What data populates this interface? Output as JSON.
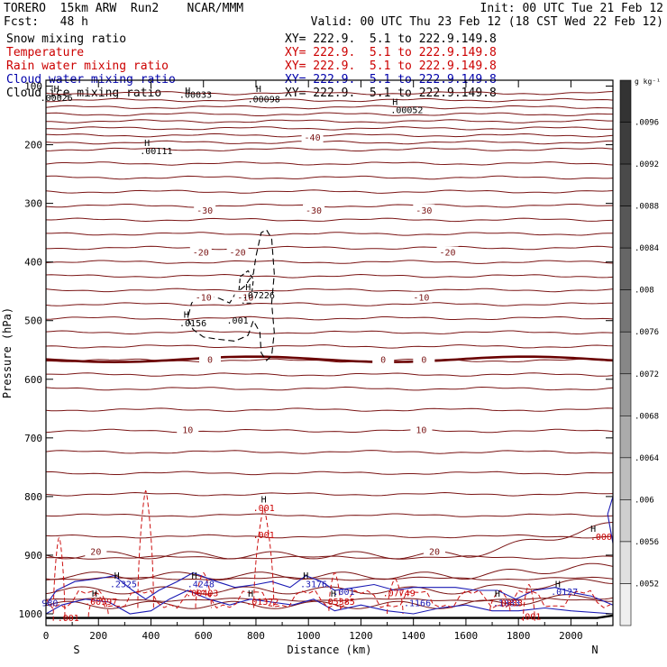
{
  "header": {
    "model": "TORERO  15km ARW  Run2    NCAR/MMM",
    "init": "Init: 00 UTC Tue 21 Feb 12",
    "fcst": "Fcst:   48 h",
    "valid": "Valid: 00 UTC Thu 23 Feb 12 (18 CST Wed 22 Feb 12)"
  },
  "fields": [
    {
      "label": "Snow mixing ratio",
      "xy": "XY= 222.9.  5.1 to 222.9.149.8",
      "color": "#000000"
    },
    {
      "label": "Temperature",
      "xy": "XY= 222.9.  5.1 to 222.9.149.8",
      "color": "#cc0000"
    },
    {
      "label": "Rain water mixing ratio",
      "xy": "XY= 222.9.  5.1 to 222.9.149.8",
      "color": "#cc0000"
    },
    {
      "label": "Cloud water mixing ratio",
      "xy": "XY= 222.9.  5.1 to 222.9.149.8",
      "color": "#0000aa"
    },
    {
      "label": "Cloud ice mixing ratio",
      "xy": "XY= 222.9.  5.1 to 222.9.149.8",
      "color": "#000000"
    }
  ],
  "chart_data": {
    "type": "contour",
    "xlabel": "Distance (km)",
    "ylabel": "Pressure (hPa)",
    "xlim": [
      0,
      2160
    ],
    "ylim": [
      1020,
      100
    ],
    "xticks": [
      0,
      200,
      400,
      600,
      800,
      1000,
      1200,
      1400,
      1600,
      1800,
      2000
    ],
    "yticks": [
      100,
      200,
      300,
      400,
      500,
      600,
      700,
      800,
      900,
      1000
    ],
    "x_end_labels": {
      "left": "S",
      "right": "N"
    },
    "colorbar": {
      "unit": "g kg⁻¹",
      "ticks": [
        ".0096",
        ".0092",
        ".0088",
        ".0084",
        ".008",
        ".0076",
        ".0072",
        ".0068",
        ".0064",
        ".006",
        ".0056",
        ".0052"
      ],
      "colors": [
        "#333333",
        "#3d3d3d",
        "#4a4a4a",
        "#575757",
        "#666666",
        "#767676",
        "#878787",
        "#999999",
        "#ababab",
        "#bdbdbd",
        "#cfcfcf",
        "#e0e0e0",
        "#efefef"
      ]
    },
    "temperature_contours": [
      {
        "label": "-40",
        "p": 187,
        "x_labels": [
          1015
        ]
      },
      {
        "label": "-30",
        "p": 311,
        "x_labels": [
          605,
          1020,
          1440
        ]
      },
      {
        "label": "-20",
        "p": 383,
        "x_labels": [
          590,
          730,
          1530
        ]
      },
      {
        "label": "-10",
        "p": 460,
        "x_labels": [
          600,
          760,
          1430
        ]
      },
      {
        "label": "0",
        "p": 566,
        "x_labels": [
          625,
          1285,
          1440
        ]
      },
      {
        "label": "10",
        "p": 686,
        "x_labels": [
          540,
          1430
        ]
      },
      {
        "label": "20",
        "p": 893,
        "x_labels": [
          190,
          1480
        ]
      }
    ],
    "freezing_level_hPa": 566,
    "extrema_labels": [
      {
        "text": ".00026",
        "x": 40,
        "p": 125,
        "field": "snow"
      },
      {
        "text": ".00033",
        "x": 570,
        "p": 120,
        "field": "snow"
      },
      {
        "text": ".00098",
        "x": 830,
        "p": 128,
        "field": "snow"
      },
      {
        "text": ".00052",
        "x": 1375,
        "p": 146,
        "field": "snow"
      },
      {
        "text": ".00111",
        "x": 420,
        "p": 216,
        "field": "snow"
      },
      {
        "text": ".07226",
        "x": 810,
        "p": 462,
        "field": "snow"
      },
      {
        "text": ".0156",
        "x": 560,
        "p": 510,
        "field": "snow"
      },
      {
        "text": ".001",
        "x": 730,
        "p": 505,
        "field": "snow"
      },
      {
        "text": ".001",
        "x": 830,
        "p": 825,
        "field": "rain"
      },
      {
        "text": ".001",
        "x": 830,
        "p": 871,
        "field": "rain"
      },
      {
        "text": ".000",
        "x": 2115,
        "p": 874,
        "field": "rain"
      },
      {
        "text": ".2325",
        "x": 295,
        "p": 955,
        "field": "cloud"
      },
      {
        "text": ".4248",
        "x": 590,
        "p": 955,
        "field": "cloud"
      },
      {
        "text": ".3176",
        "x": 1020,
        "p": 955,
        "field": "cloud"
      },
      {
        "text": ".001",
        "x": 1135,
        "p": 968,
        "field": "cloud"
      },
      {
        "text": ".0127",
        "x": 1975,
        "p": 968,
        "field": "cloud"
      },
      {
        "text": ".1166",
        "x": 1415,
        "p": 987,
        "field": "cloud"
      },
      {
        "text": ".1883",
        "x": 1755,
        "p": 987,
        "field": "cloud"
      },
      {
        "text": ".00997",
        "x": 210,
        "p": 985,
        "field": "rain"
      },
      {
        "text": ".00403",
        "x": 595,
        "p": 970,
        "field": "rain"
      },
      {
        "text": ".01372",
        "x": 825,
        "p": 985,
        "field": "rain"
      },
      {
        "text": ".05385",
        "x": 1115,
        "p": 985,
        "field": "rain"
      },
      {
        "text": ".07749",
        "x": 1345,
        "p": 970,
        "field": "rain"
      },
      {
        "text": ".0333",
        "x": 1765,
        "p": 987,
        "field": "rain"
      },
      {
        "text": ".001",
        "x": 85,
        "p": 1012,
        "field": "rain"
      },
      {
        "text": ".001",
        "x": 1845,
        "p": 1010,
        "field": "rain"
      },
      {
        "text": "980",
        "x": 15,
        "p": 987,
        "field": "cloud"
      }
    ],
    "h_markers": [
      {
        "x": 40,
        "p": 110
      },
      {
        "x": 540,
        "p": 113
      },
      {
        "x": 810,
        "p": 110
      },
      {
        "x": 1330,
        "p": 132
      },
      {
        "x": 385,
        "p": 202
      },
      {
        "x": 770,
        "p": 448
      },
      {
        "x": 535,
        "p": 495
      },
      {
        "x": 830,
        "p": 810
      },
      {
        "x": 2085,
        "p": 860
      },
      {
        "x": 270,
        "p": 940
      },
      {
        "x": 565,
        "p": 940
      },
      {
        "x": 990,
        "p": 940
      },
      {
        "x": 185,
        "p": 971
      },
      {
        "x": 780,
        "p": 971
      },
      {
        "x": 1095,
        "p": 971
      },
      {
        "x": 1720,
        "p": 971
      },
      {
        "x": 1950,
        "p": 955
      }
    ]
  }
}
